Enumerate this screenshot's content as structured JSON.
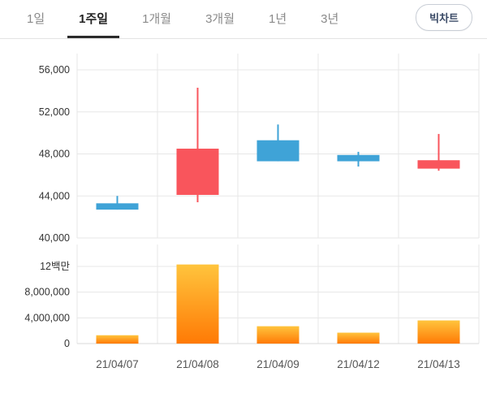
{
  "tabs": [
    {
      "label": "1일",
      "active": false
    },
    {
      "label": "1주일",
      "active": true
    },
    {
      "label": "1개월",
      "active": false
    },
    {
      "label": "3개월",
      "active": false
    },
    {
      "label": "1년",
      "active": false
    },
    {
      "label": "3년",
      "active": false
    }
  ],
  "big_chart_label": "빅차트",
  "colors": {
    "up": "#f9555c",
    "down": "#3fa3d7",
    "volume_top": "#ffc43d",
    "volume_bottom": "#ff7a05",
    "grid": "#e7e7e7",
    "baseline": "#d8d8d8",
    "axis_text": "#333333",
    "date_text": "#555555"
  },
  "chart_data": [
    {
      "type": "candlestick",
      "title": "weekly price candles",
      "x": [
        "21/04/07",
        "21/04/08",
        "21/04/09",
        "21/04/12",
        "21/04/13"
      ],
      "ylim": [
        40000,
        56000
      ],
      "yticks": [
        {
          "value": 56000,
          "label": "56,000"
        },
        {
          "value": 52000,
          "label": "52,000"
        },
        {
          "value": 48000,
          "label": "48,000"
        },
        {
          "value": 44000,
          "label": "44,000"
        },
        {
          "value": 40000,
          "label": "40,000"
        }
      ],
      "candles": [
        {
          "open": 43300,
          "close": 42700,
          "high": 44000,
          "low": 42700,
          "dir": "down"
        },
        {
          "open": 44100,
          "close": 48500,
          "high": 54300,
          "low": 43400,
          "dir": "up"
        },
        {
          "open": 49300,
          "close": 47300,
          "high": 50800,
          "low": 47300,
          "dir": "down"
        },
        {
          "open": 47900,
          "close": 47300,
          "high": 48200,
          "low": 46800,
          "dir": "down"
        },
        {
          "open": 46600,
          "close": 47400,
          "high": 49900,
          "low": 46400,
          "dir": "up"
        }
      ]
    },
    {
      "type": "bar",
      "title": "trading volume",
      "categories": [
        "21/04/07",
        "21/04/08",
        "21/04/09",
        "21/04/12",
        "21/04/13"
      ],
      "values": [
        1300000,
        12300000,
        2700000,
        1700000,
        3600000
      ],
      "ylim": [
        0,
        13500000
      ],
      "yticks": [
        {
          "value": 12000000,
          "label": "12백만"
        },
        {
          "value": 8000000,
          "label": "8,000,000"
        },
        {
          "value": 4000000,
          "label": "4,000,000"
        },
        {
          "value": 0,
          "label": "0"
        }
      ]
    }
  ]
}
